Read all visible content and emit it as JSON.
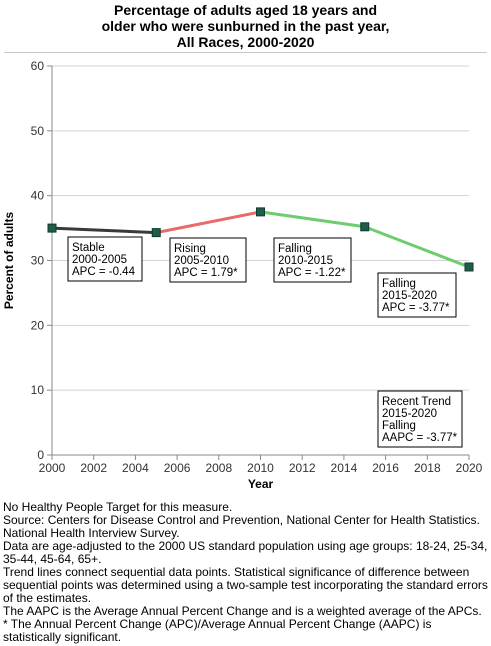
{
  "chart_data": {
    "type": "line",
    "title_lines": [
      "Percentage of adults aged 18 years and",
      "older who were sunburned in the past year,",
      "All Races,  2000-2020"
    ],
    "xlabel": "Year",
    "ylabel": "Percent of adults",
    "xlim": [
      2000,
      2020
    ],
    "ylim": [
      0,
      60
    ],
    "x_ticks": [
      "2000",
      "2002",
      "2004",
      "2006",
      "2008",
      "2010",
      "2012",
      "2014",
      "2016",
      "2018",
      "2020"
    ],
    "y_ticks": [
      "0",
      "10",
      "20",
      "30",
      "40",
      "50",
      "60"
    ],
    "grid": "horizontal",
    "points": [
      {
        "x": 2000,
        "y": 35.0
      },
      {
        "x": 2005,
        "y": 34.3
      },
      {
        "x": 2010,
        "y": 37.5
      },
      {
        "x": 2015,
        "y": 35.2
      },
      {
        "x": 2020,
        "y": 29.0
      }
    ],
    "segments": [
      {
        "from": 0,
        "to": 1,
        "color": "#3a3a3a",
        "label_lines": [
          "Stable",
          "2000-2005",
          "APC = -0.44"
        ]
      },
      {
        "from": 1,
        "to": 2,
        "color": "#e86a6a",
        "label_lines": [
          "Rising",
          "2005-2010",
          "APC =  1.79*"
        ]
      },
      {
        "from": 2,
        "to": 3,
        "color": "#6dcc6d",
        "label_lines": [
          "Falling",
          "2010-2015",
          "APC = -1.22*"
        ]
      },
      {
        "from": 3,
        "to": 4,
        "color": "#6dcc6d",
        "label_lines": [
          "Falling",
          "2015-2020",
          "APC = -3.77*"
        ]
      }
    ],
    "trend_box_lines": [
      "Recent Trend",
      "2015-2020",
      "Falling",
      "AAPC = -3.77*"
    ],
    "marker_color": "#1f5c4a"
  },
  "notes": [
    "No Healthy People Target for this measure.",
    "Source: Centers for Disease Control and Prevention, National Center for Health Statistics. National Health Interview Survey.",
    "Data are age-adjusted to the 2000 US standard population using age groups: 18-24, 25-34, 35-44, 45-64, 65+.",
    "Trend lines connect sequential data points. Statistical significance of difference between sequential points was determined using a two-sample test incorporating the standard errors of the estimates.",
    "The AAPC is the Average Annual Percent Change and is a weighted average of the APCs.",
    "* The Annual Percent Change (APC)/Average Annual Percent Change (AAPC) is statistically significant."
  ]
}
